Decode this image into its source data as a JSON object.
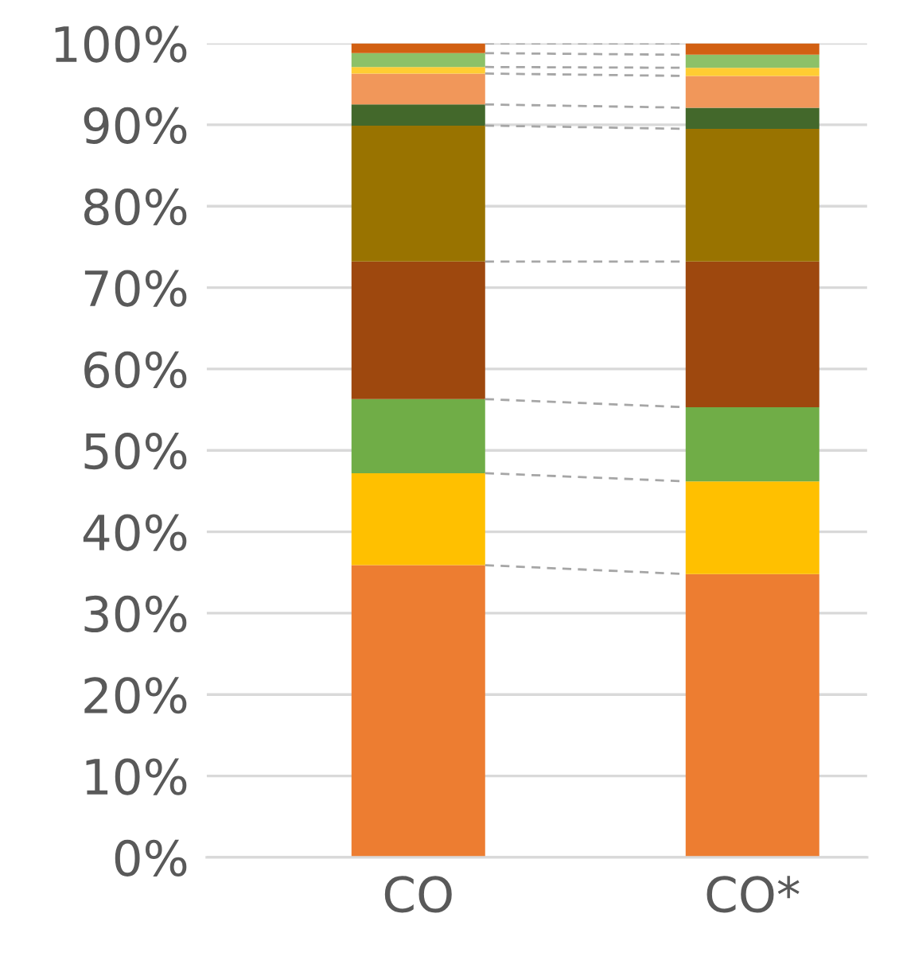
{
  "chart_data": {
    "type": "bar",
    "stacked": true,
    "categories": [
      "CO",
      "CO*"
    ],
    "series": [
      {
        "color": "#ed7d31",
        "values": [
          35.9,
          34.8
        ]
      },
      {
        "color": "#ffc000",
        "values": [
          11.3,
          11.4
        ]
      },
      {
        "color": "#70ad47",
        "values": [
          9.1,
          9.1
        ]
      },
      {
        "color": "#9e480e",
        "values": [
          16.9,
          17.9
        ]
      },
      {
        "color": "#997300",
        "values": [
          16.7,
          16.3
        ]
      },
      {
        "color": "#43682b",
        "values": [
          2.6,
          2.6
        ]
      },
      {
        "color": "#f1975a",
        "values": [
          3.8,
          3.9
        ]
      },
      {
        "color": "#ffcd33",
        "values": [
          0.8,
          1.0
        ]
      },
      {
        "color": "#8cc168",
        "values": [
          1.7,
          1.6
        ]
      },
      {
        "color": "#d26012",
        "values": [
          1.2,
          1.4
        ]
      }
    ],
    "ylim": [
      0,
      100
    ],
    "yticks": [
      {
        "value": 0,
        "label": "0%"
      },
      {
        "value": 10,
        "label": "10%"
      },
      {
        "value": 20,
        "label": "20%"
      },
      {
        "value": 30,
        "label": "30%"
      },
      {
        "value": 40,
        "label": "40%"
      },
      {
        "value": 50,
        "label": "50%"
      },
      {
        "value": 60,
        "label": "60%"
      },
      {
        "value": 70,
        "label": "70%"
      },
      {
        "value": 80,
        "label": "80%"
      },
      {
        "value": 90,
        "label": "90%"
      },
      {
        "value": 100,
        "label": "100%"
      }
    ],
    "grid": "y",
    "legend": false
  }
}
